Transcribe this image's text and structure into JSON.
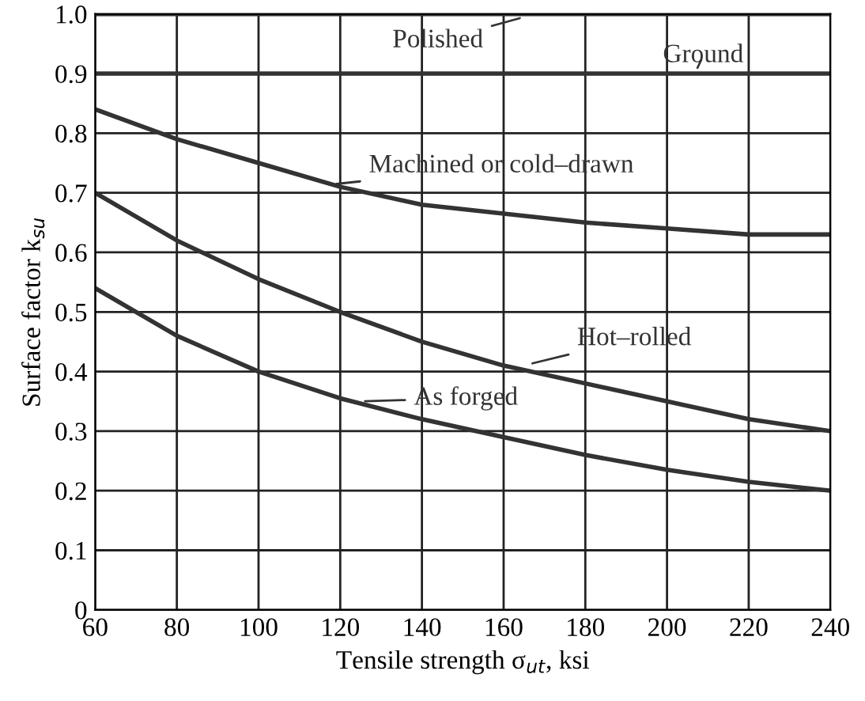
{
  "chart_data": {
    "type": "line",
    "xlabel": "Tensile strength σ$_{ut}$, ksi",
    "ylabel": "Surface factor k$_{su}$",
    "x": [
      60,
      80,
      100,
      120,
      140,
      160,
      180,
      200,
      220,
      240
    ],
    "series": [
      {
        "name": "Polished",
        "color": "#333333",
        "values": [
          1.0,
          1.0,
          1.0,
          1.0,
          1.0,
          1.0,
          1.0,
          1.0,
          1.0,
          1.0
        ]
      },
      {
        "name": "Ground",
        "color": "#333333",
        "values": [
          0.9,
          0.9,
          0.9,
          0.9,
          0.9,
          0.9,
          0.9,
          0.9,
          0.9,
          0.9
        ]
      },
      {
        "name": "Machined or cold–drawn",
        "color": "#333333",
        "values": [
          0.84,
          0.79,
          0.75,
          0.71,
          0.68,
          0.665,
          0.65,
          0.64,
          0.63,
          0.63
        ]
      },
      {
        "name": "Hot–rolled",
        "color": "#333333",
        "values": [
          0.7,
          0.62,
          0.555,
          0.5,
          0.45,
          0.41,
          0.38,
          0.35,
          0.32,
          0.3
        ]
      },
      {
        "name": "As forged",
        "color": "#333333",
        "values": [
          0.54,
          0.46,
          0.4,
          0.355,
          0.32,
          0.29,
          0.26,
          0.235,
          0.215,
          0.2
        ]
      }
    ],
    "xlim": [
      60,
      240
    ],
    "ylim": [
      0,
      1.0
    ],
    "xticks": [
      60,
      80,
      100,
      120,
      140,
      160,
      180,
      200,
      220,
      240
    ],
    "yticks": [
      0,
      0.1,
      0.2,
      0.3,
      0.4,
      0.5,
      0.6,
      0.7,
      0.8,
      0.9,
      {
        "value": 1.0,
        "label": "1.0"
      }
    ],
    "grid": true,
    "line_style": "solid"
  }
}
